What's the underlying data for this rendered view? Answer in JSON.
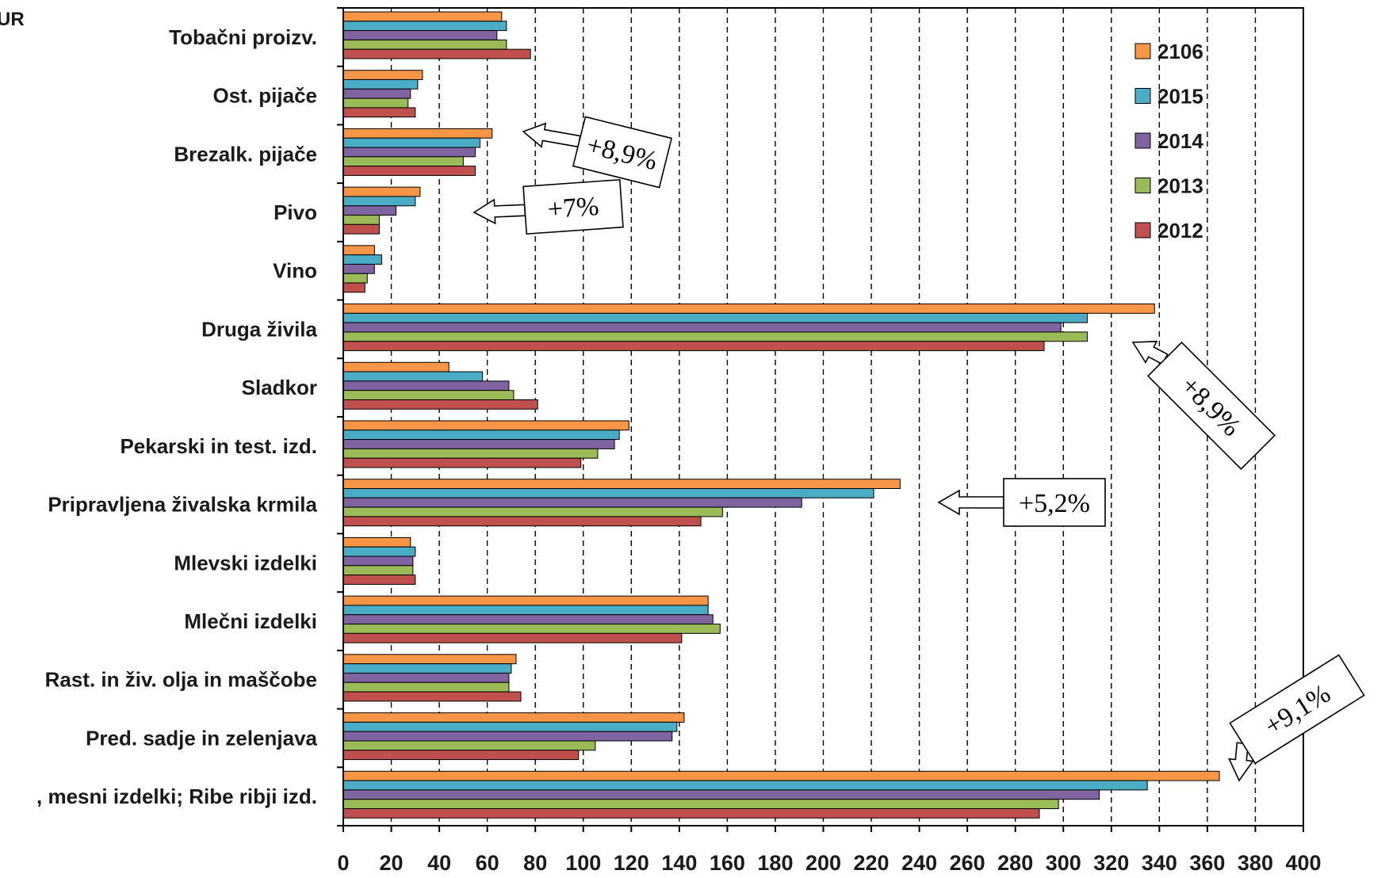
{
  "chart_data": {
    "type": "bar",
    "orientation": "horizontal",
    "unit_label": "UR",
    "title": "",
    "xlabel": "",
    "ylabel": "",
    "xlim": [
      0,
      400
    ],
    "x_ticks": [
      0,
      20,
      40,
      60,
      80,
      100,
      120,
      140,
      160,
      180,
      200,
      220,
      240,
      260,
      280,
      300,
      320,
      340,
      360,
      380,
      400
    ],
    "grid": "vertical dashed",
    "legend_position": "top-right",
    "categories": [
      "Tobačni proizv.",
      "Ost. pijače",
      "Brezalk. pijače",
      "Pivo",
      "Vino",
      "Druga živila",
      "Sladkor",
      "Pekarski in test. izd.",
      "Pripravljena živalska krmila",
      "Mlevski izdelki",
      "Mlečni izdelki",
      "Rast. in živ. olja in maščobe",
      "Pred. sadje in zelenjava",
      ", mesni izdelki; Ribe ribji izd."
    ],
    "series": [
      {
        "name": "2106",
        "color": "#f79646",
        "values": [
          66,
          33,
          62,
          32,
          13,
          338,
          44,
          119,
          232,
          28,
          152,
          72,
          142,
          365
        ]
      },
      {
        "name": "2015",
        "color": "#4bacc6",
        "values": [
          68,
          31,
          57,
          30,
          16,
          310,
          58,
          115,
          221,
          30,
          152,
          70,
          139,
          335
        ]
      },
      {
        "name": "2014",
        "color": "#8064a2",
        "values": [
          64,
          28,
          55,
          22,
          13,
          299,
          69,
          113,
          191,
          29,
          154,
          69,
          137,
          315
        ]
      },
      {
        "name": "2013",
        "color": "#9bbb59",
        "values": [
          68,
          27,
          50,
          15,
          10,
          310,
          71,
          106,
          158,
          29,
          157,
          69,
          105,
          298
        ]
      },
      {
        "name": "2012",
        "color": "#c0504d",
        "values": [
          78,
          30,
          55,
          15,
          9,
          292,
          81,
          99,
          149,
          30,
          141,
          74,
          98,
          290
        ]
      }
    ],
    "annotations": [
      {
        "text": "+8,9%",
        "category": "Brezalk. pijače"
      },
      {
        "text": "+7%",
        "category": "Pivo"
      },
      {
        "text": "+8,9%",
        "category": "Druga živila"
      },
      {
        "text": "+5,2%",
        "category": "Pripravljena živalska krmila"
      },
      {
        "text": "+9,1%",
        "category": ", mesni izdelki; Ribe ribji izd."
      }
    ]
  }
}
